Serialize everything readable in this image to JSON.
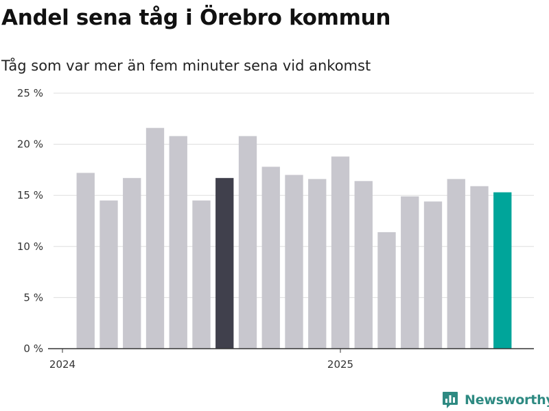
{
  "header": {
    "title": "Andel sena tåg i Örebro kommun",
    "subtitle": "Tåg som var mer än fem minuter sena vid ankomst"
  },
  "brand": {
    "name": "Newsworthy",
    "icon": "newsworthy-logo-icon",
    "color": "#2e8a82"
  },
  "colors": {
    "bar_default": "#c8c7ce",
    "bar_highlight_dark": "#40404c",
    "bar_highlight_latest": "#00a59a",
    "grid": "#dddddd",
    "axis": "#333333"
  },
  "chart_data": {
    "type": "bar",
    "title": "Andel sena tåg i Örebro kommun",
    "subtitle": "Tåg som var mer än fem minuter sena vid ankomst",
    "y_unit": "%",
    "ylim": [
      0,
      25
    ],
    "y_ticks": [
      0,
      5,
      10,
      15,
      20,
      25
    ],
    "y_tick_labels": [
      "0 %",
      "5 %",
      "10 %",
      "15 %",
      "20 %",
      "25 %"
    ],
    "grid": true,
    "x_tick_labels": [
      {
        "label": "2024",
        "at": "2024-01"
      },
      {
        "label": "2025",
        "at": "2025-01"
      }
    ],
    "x_domain": [
      "2024-01",
      "2025-09"
    ],
    "categories": [
      "2024-02",
      "2024-03",
      "2024-04",
      "2024-05",
      "2024-06",
      "2024-07",
      "2024-08",
      "2024-09",
      "2024-10",
      "2024-11",
      "2024-12",
      "2025-01",
      "2025-02",
      "2025-03",
      "2025-04",
      "2025-05",
      "2025-06",
      "2025-07",
      "2025-08"
    ],
    "values": [
      17.2,
      14.5,
      16.7,
      21.6,
      20.8,
      14.5,
      16.7,
      20.8,
      17.8,
      17.0,
      16.6,
      18.8,
      16.4,
      11.4,
      14.9,
      14.4,
      16.6,
      15.9,
      15.3
    ],
    "highlight": {
      "2024-08": "dark",
      "2025-08": "latest"
    }
  }
}
